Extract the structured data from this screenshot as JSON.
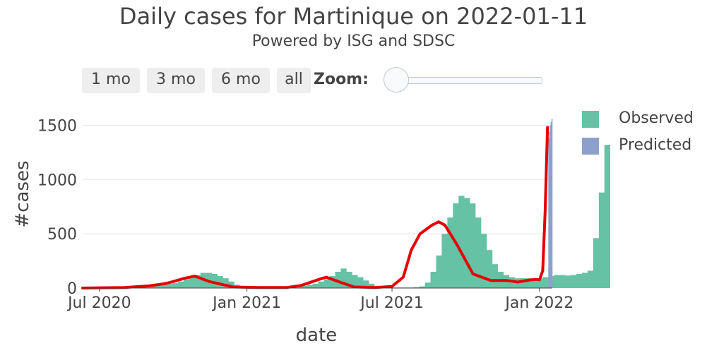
{
  "header": {
    "title": "Daily cases for Martinique on 2022-01-11",
    "subtitle": "Powered by ISG and SDSC"
  },
  "range_selector": {
    "buttons": [
      "1 mo",
      "3 mo",
      "6 mo",
      "all"
    ],
    "zoom_label": "Zoom:",
    "zoom_level": 0
  },
  "legend": {
    "items": [
      {
        "label": "Observed",
        "color": "#66c2a5"
      },
      {
        "label": "Predicted",
        "color": "#8da0cb"
      }
    ]
  },
  "colors": {
    "trend": "#e60000",
    "grid": "#e5e5e5"
  },
  "chart_data": {
    "type": "bar",
    "xlabel": "date",
    "ylabel": "#cases",
    "xlim": [
      "2020-06-10",
      "2022-01-17"
    ],
    "ylim": [
      0,
      1600
    ],
    "x_ticks": [
      "Jul 2020",
      "Jan 2021",
      "Jul 2021",
      "Jan 2022"
    ],
    "y_ticks": [
      "0",
      "500",
      "1000",
      "1500"
    ],
    "observed_weekly": {
      "start": "2020-06-10",
      "interval_days": 7,
      "values": [
        2,
        3,
        3,
        4,
        5,
        6,
        8,
        10,
        12,
        15,
        18,
        22,
        25,
        28,
        32,
        38,
        45,
        60,
        80,
        100,
        120,
        140,
        140,
        130,
        110,
        90,
        60,
        30,
        15,
        8,
        5,
        5,
        5,
        5,
        5,
        6,
        8,
        10,
        12,
        20,
        30,
        40,
        60,
        80,
        110,
        150,
        180,
        150,
        120,
        100,
        70,
        40,
        20,
        10,
        5,
        5,
        5,
        5,
        5,
        8,
        15,
        50,
        150,
        300,
        500,
        650,
        780,
        850,
        830,
        780,
        650,
        500,
        350,
        220,
        150,
        120,
        100,
        90,
        90,
        90,
        80,
        90,
        100,
        110,
        120,
        120,
        115,
        120,
        130,
        140,
        160,
        460,
        880,
        1320
      ]
    },
    "predicted": {
      "dates": [
        "2022-01-12",
        "2022-01-13",
        "2022-01-14",
        "2022-01-15",
        "2022-01-16"
      ],
      "values": [
        1380,
        1440,
        1500,
        1530,
        1560
      ]
    },
    "trend": {
      "x": [
        "2020-06-10",
        "2020-08-01",
        "2020-09-01",
        "2020-09-20",
        "2020-10-01",
        "2020-10-15",
        "2020-10-28",
        "2020-11-15",
        "2020-12-15",
        "2021-01-15",
        "2021-02-20",
        "2021-03-10",
        "2021-04-01",
        "2021-04-10",
        "2021-04-25",
        "2021-05-15",
        "2021-06-10",
        "2021-07-01",
        "2021-07-15",
        "2021-07-25",
        "2021-08-05",
        "2021-08-20",
        "2021-08-28",
        "2021-09-05",
        "2021-09-20",
        "2021-10-10",
        "2021-11-01",
        "2021-11-20",
        "2021-12-05",
        "2021-12-20",
        "2021-12-28",
        "2022-01-01",
        "2022-01-05",
        "2022-01-08",
        "2022-01-11"
      ],
      "y": [
        0,
        5,
        20,
        40,
        60,
        90,
        110,
        60,
        10,
        5,
        5,
        25,
        80,
        100,
        60,
        10,
        5,
        15,
        100,
        350,
        500,
        580,
        610,
        580,
        400,
        130,
        70,
        70,
        55,
        75,
        80,
        75,
        160,
        700,
        1480
      ]
    }
  }
}
